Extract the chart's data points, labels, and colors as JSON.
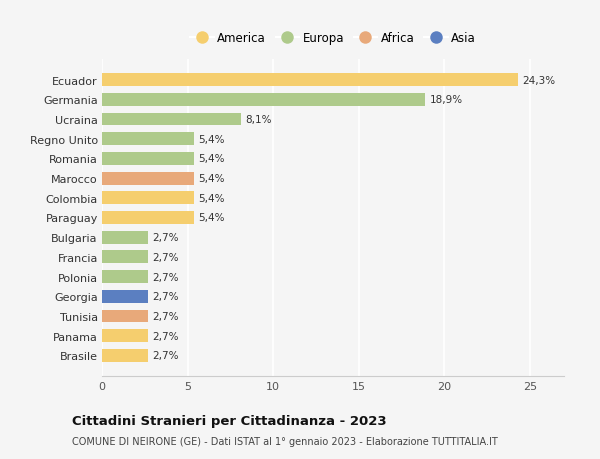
{
  "countries": [
    "Ecuador",
    "Germania",
    "Ucraina",
    "Regno Unito",
    "Romania",
    "Marocco",
    "Colombia",
    "Paraguay",
    "Bulgaria",
    "Francia",
    "Polonia",
    "Georgia",
    "Tunisia",
    "Panama",
    "Brasile"
  ],
  "values": [
    24.3,
    18.9,
    8.1,
    5.4,
    5.4,
    5.4,
    5.4,
    5.4,
    2.7,
    2.7,
    2.7,
    2.7,
    2.7,
    2.7,
    2.7
  ],
  "labels": [
    "24,3%",
    "18,9%",
    "8,1%",
    "5,4%",
    "5,4%",
    "5,4%",
    "5,4%",
    "5,4%",
    "2,7%",
    "2,7%",
    "2,7%",
    "2,7%",
    "2,7%",
    "2,7%",
    "2,7%"
  ],
  "continents": [
    "America",
    "Europa",
    "Europa",
    "Europa",
    "Europa",
    "Africa",
    "America",
    "America",
    "Europa",
    "Europa",
    "Europa",
    "Asia",
    "Africa",
    "America",
    "America"
  ],
  "colors": {
    "America": "#F5CE6E",
    "Europa": "#AECA8B",
    "Africa": "#E8A97A",
    "Asia": "#5B7FC1"
  },
  "legend_order": [
    "America",
    "Europa",
    "Africa",
    "Asia"
  ],
  "title": "Cittadini Stranieri per Cittadinanza - 2023",
  "subtitle": "COMUNE DI NEIRONE (GE) - Dati ISTAT al 1° gennaio 2023 - Elaborazione TUTTITALIA.IT",
  "xlim": [
    0,
    27
  ],
  "xticks": [
    0,
    5,
    10,
    15,
    20,
    25
  ],
  "background_color": "#f5f5f5",
  "grid_color": "#ffffff",
  "bar_height": 0.65
}
